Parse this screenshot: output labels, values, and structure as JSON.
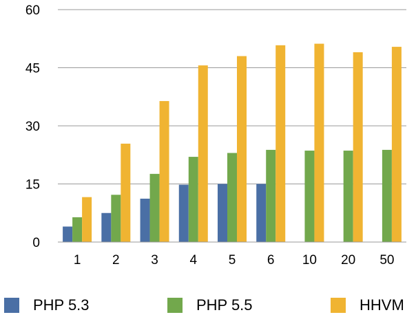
{
  "chart_data": {
    "type": "bar",
    "categories": [
      "1",
      "2",
      "3",
      "4",
      "5",
      "6",
      "10",
      "20",
      "50"
    ],
    "series": [
      {
        "name": "PHP 5.3",
        "color": "#4a6fa5",
        "values": [
          4.0,
          7.5,
          11.2,
          14.8,
          15.0,
          15.0,
          null,
          null,
          null
        ]
      },
      {
        "name": "PHP 5.5",
        "color": "#72a84c",
        "values": [
          6.4,
          12.2,
          17.6,
          22.0,
          23.0,
          23.8,
          23.6,
          23.6,
          23.8
        ]
      },
      {
        "name": "HHVM",
        "color": "#f0b432",
        "values": [
          11.6,
          25.4,
          36.4,
          45.6,
          48.0,
          50.8,
          51.2,
          49.0,
          50.4
        ]
      }
    ],
    "yticks": [
      "0",
      "15",
      "30",
      "45",
      "60"
    ],
    "ylim": [
      0,
      60
    ],
    "grid": true,
    "legend_position": "bottom",
    "title": "",
    "xlabel": "",
    "ylabel": ""
  }
}
